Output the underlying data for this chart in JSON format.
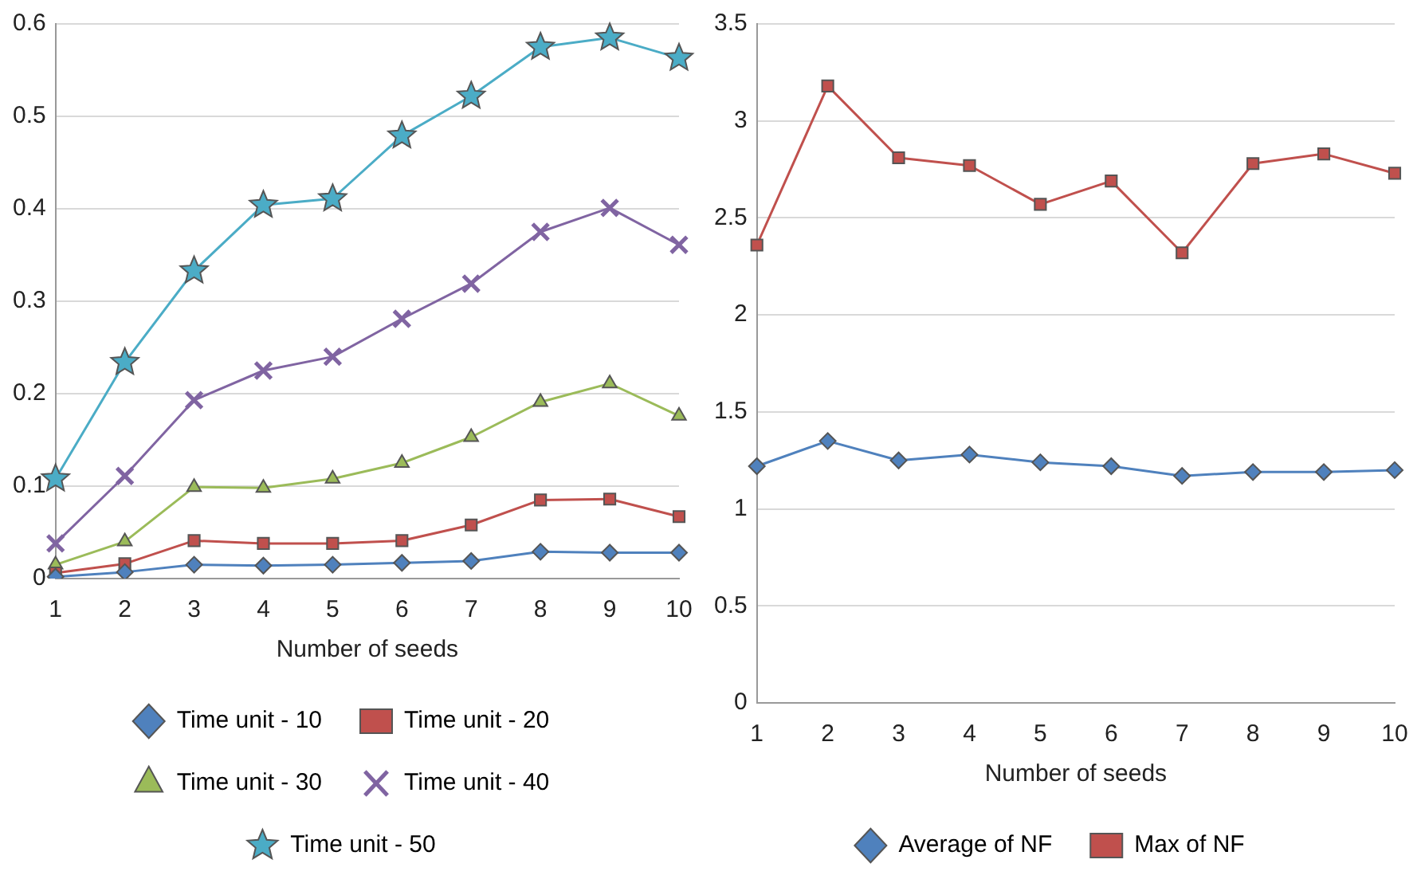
{
  "chart_data": [
    {
      "type": "line",
      "xlabel": "Number of seeds",
      "categories": [
        "1",
        "2",
        "3",
        "4",
        "5",
        "6",
        "7",
        "8",
        "9",
        "10"
      ],
      "ylim": [
        0,
        0.6
      ],
      "yticks": [
        0,
        0.1,
        0.2,
        0.3,
        0.4,
        0.5,
        0.6
      ],
      "grid": "y",
      "legend": "bottom",
      "line_style": "solid",
      "series": [
        {
          "name": "Time unit - 10",
          "color": "#4f81bd",
          "marker": "diamond",
          "values": [
            0.002,
            0.007,
            0.015,
            0.014,
            0.015,
            0.017,
            0.019,
            0.029,
            0.028,
            0.028
          ]
        },
        {
          "name": "Time unit - 20",
          "color": "#c0504d",
          "marker": "square",
          "values": [
            0.006,
            0.016,
            0.041,
            0.038,
            0.038,
            0.041,
            0.058,
            0.085,
            0.086,
            0.067
          ]
        },
        {
          "name": "Time unit - 30",
          "color": "#9bbb59",
          "marker": "triangle",
          "values": [
            0.015,
            0.04,
            0.099,
            0.098,
            0.108,
            0.125,
            0.153,
            0.191,
            0.211,
            0.176
          ]
        },
        {
          "name": "Time unit - 40",
          "color": "#8064a2",
          "marker": "cross",
          "values": [
            0.038,
            0.111,
            0.193,
            0.225,
            0.24,
            0.281,
            0.319,
            0.375,
            0.401,
            0.361
          ]
        },
        {
          "name": "Time unit - 50",
          "color": "#4bacc6",
          "marker": "star",
          "values": [
            0.108,
            0.234,
            0.333,
            0.404,
            0.411,
            0.479,
            0.522,
            0.575,
            0.585,
            0.563
          ]
        }
      ]
    },
    {
      "type": "line",
      "xlabel": "Number of seeds",
      "categories": [
        "1",
        "2",
        "3",
        "4",
        "5",
        "6",
        "7",
        "8",
        "9",
        "10"
      ],
      "ylim": [
        0,
        3.5
      ],
      "yticks": [
        0,
        0.5,
        1,
        1.5,
        2,
        2.5,
        3,
        3.5
      ],
      "grid": "y",
      "legend": "bottom",
      "line_style": "solid",
      "series": [
        {
          "name": "Average of NF",
          "color": "#4f81bd",
          "marker": "diamond",
          "values": [
            1.22,
            1.35,
            1.25,
            1.28,
            1.24,
            1.22,
            1.17,
            1.19,
            1.19,
            1.2
          ]
        },
        {
          "name": "Max of NF",
          "color": "#c0504d",
          "marker": "square",
          "values": [
            2.36,
            3.18,
            2.81,
            2.77,
            2.57,
            2.69,
            2.32,
            2.78,
            2.83,
            2.73
          ]
        }
      ]
    }
  ]
}
